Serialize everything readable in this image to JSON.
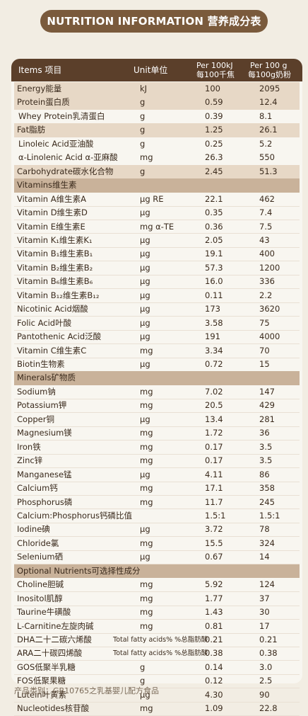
{
  "title": "NUTRITION INFORMATION 营养成分表",
  "header": {
    "items": "Items 项目",
    "unit": "Unit单位",
    "per100kj_1": "Per 100kJ",
    "per100kj_2": "每100千焦",
    "per100g_1": "Per 100 g",
    "per100g_2": "每100g奶粉"
  },
  "rows": [
    {
      "name": "Energy能量",
      "unit": "kJ",
      "v1": "100",
      "v2": "2095",
      "style": "alt"
    },
    {
      "name": "Protein蛋白质",
      "unit": "g",
      "v1": "0.59",
      "v2": "12.4",
      "style": "alt"
    },
    {
      "name": "Whey Protein乳清蛋白",
      "unit": "g",
      "v1": "0.39",
      "v2": "8.1",
      "style": "sub"
    },
    {
      "name": "Fat脂肪",
      "unit": "g",
      "v1": "1.25",
      "v2": "26.1",
      "style": "alt"
    },
    {
      "name": "Linoleic Acid亚油酸",
      "unit": "g",
      "v1": "0.25",
      "v2": "5.2",
      "style": "sub"
    },
    {
      "name": "α-Linolenic Acid α-亚麻酸",
      "unit": "mg",
      "v1": "26.3",
      "v2": "550",
      "style": "sub"
    },
    {
      "name": "Carbohydrate碳水化合物",
      "unit": "g",
      "v1": "2.45",
      "v2": "51.3",
      "style": "alt"
    },
    {
      "name": "Vitamins维生素",
      "unit": "",
      "v1": "",
      "v2": "",
      "style": "sec"
    },
    {
      "name": "Vitamin A维生素A",
      "unit": "μg RE",
      "v1": "22.1",
      "v2": "462",
      "style": ""
    },
    {
      "name": "Vitamin D维生素D",
      "unit": "μg",
      "v1": "0.35",
      "v2": "7.4",
      "style": ""
    },
    {
      "name": "Vitamin E维生素E",
      "unit": "mg α-TE",
      "v1": "0.36",
      "v2": "7.5",
      "style": ""
    },
    {
      "name": "Vitamin K₁维生素K₁",
      "unit": "μg",
      "v1": "2.05",
      "v2": "43",
      "style": ""
    },
    {
      "name": "Vitamin B₁维生素B₁",
      "unit": "μg",
      "v1": "19.1",
      "v2": "400",
      "style": ""
    },
    {
      "name": "Vitamin B₂维生素B₂",
      "unit": "μg",
      "v1": "57.3",
      "v2": "1200",
      "style": ""
    },
    {
      "name": "Vitamin B₆维生素B₆",
      "unit": "μg",
      "v1": "16.0",
      "v2": "336",
      "style": ""
    },
    {
      "name": "Vitamin B₁₂维生素B₁₂",
      "unit": "μg",
      "v1": "0.11",
      "v2": "2.2",
      "style": ""
    },
    {
      "name": "Nicotinic Acid烟酸",
      "unit": "μg",
      "v1": "173",
      "v2": "3620",
      "style": ""
    },
    {
      "name": "Folic Acid叶酸",
      "unit": "μg",
      "v1": "3.58",
      "v2": "75",
      "style": ""
    },
    {
      "name": "Pantothenic Acid泛酸",
      "unit": "μg",
      "v1": "191",
      "v2": "4000",
      "style": ""
    },
    {
      "name": "Vitamin C维生素C",
      "unit": "mg",
      "v1": "3.34",
      "v2": "70",
      "style": ""
    },
    {
      "name": "Biotin生物素",
      "unit": "μg",
      "v1": "0.72",
      "v2": "15",
      "style": ""
    },
    {
      "name": "Minerals矿物质",
      "unit": "",
      "v1": "",
      "v2": "",
      "style": "sec"
    },
    {
      "name": "Sodium钠",
      "unit": "mg",
      "v1": "7.02",
      "v2": "147",
      "style": ""
    },
    {
      "name": "Potassium钾",
      "unit": "mg",
      "v1": "20.5",
      "v2": "429",
      "style": ""
    },
    {
      "name": "Copper铜",
      "unit": "μg",
      "v1": "13.4",
      "v2": "281",
      "style": ""
    },
    {
      "name": "Magnesium镁",
      "unit": "mg",
      "v1": "1.72",
      "v2": "36",
      "style": ""
    },
    {
      "name": "Iron铁",
      "unit": "mg",
      "v1": "0.17",
      "v2": "3.5",
      "style": ""
    },
    {
      "name": "Zinc锌",
      "unit": "mg",
      "v1": "0.17",
      "v2": "3.5",
      "style": ""
    },
    {
      "name": "Manganese锰",
      "unit": "μg",
      "v1": "4.11",
      "v2": "86",
      "style": ""
    },
    {
      "name": "Calcium钙",
      "unit": "mg",
      "v1": "17.1",
      "v2": "358",
      "style": ""
    },
    {
      "name": "Phosphorus磷",
      "unit": "mg",
      "v1": "11.7",
      "v2": "245",
      "style": ""
    },
    {
      "name": "Calcium:Phosphorus钙磷比值",
      "unit": "",
      "v1": "1.5:1",
      "v2": "1.5:1",
      "style": ""
    },
    {
      "name": "Iodine碘",
      "unit": "μg",
      "v1": "3.72",
      "v2": "78",
      "style": ""
    },
    {
      "name": "Chloride氯",
      "unit": "mg",
      "v1": "15.5",
      "v2": "324",
      "style": ""
    },
    {
      "name": "Selenium硒",
      "unit": "μg",
      "v1": "0.67",
      "v2": "14",
      "style": ""
    },
    {
      "name": "Optional Nutrients可选择性成分",
      "unit": "",
      "v1": "",
      "v2": "",
      "style": "sec"
    },
    {
      "name": "Choline胆碱",
      "unit": "mg",
      "v1": "5.92",
      "v2": "124",
      "style": ""
    },
    {
      "name": "Inositol肌醇",
      "unit": "mg",
      "v1": "1.77",
      "v2": "37",
      "style": ""
    },
    {
      "name": "Taurine牛磺酸",
      "unit": "mg",
      "v1": "1.43",
      "v2": "30",
      "style": ""
    },
    {
      "name": "L-Carnitine左旋肉碱",
      "unit": "mg",
      "v1": "0.81",
      "v2": "17",
      "style": ""
    },
    {
      "name": "DHA二十二碳六烯酸",
      "unit": "Total fatty acids% %总脂肪酸",
      "v1": "0.21",
      "v2": "0.21",
      "style": "small"
    },
    {
      "name": "ARA二十碳四烯酸",
      "unit": "Total fatty acids% %总脂肪酸",
      "v1": "0.38",
      "v2": "0.38",
      "style": "small"
    },
    {
      "name": "GOS低聚半乳糖",
      "unit": "g",
      "v1": "0.14",
      "v2": "3.0",
      "style": ""
    },
    {
      "name": "FOS低聚果糖",
      "unit": "g",
      "v1": "0.12",
      "v2": "2.5",
      "style": ""
    },
    {
      "name": "Lutein叶黄素",
      "unit": "μg",
      "v1": "4.30",
      "v2": "90",
      "style": ""
    },
    {
      "name": "Nucleotides核苷酸",
      "unit": "mg",
      "v1": "1.09",
      "v2": "22.8",
      "style": ""
    }
  ],
  "footer": "产品类别：GB10765之乳基婴儿配方食品"
}
